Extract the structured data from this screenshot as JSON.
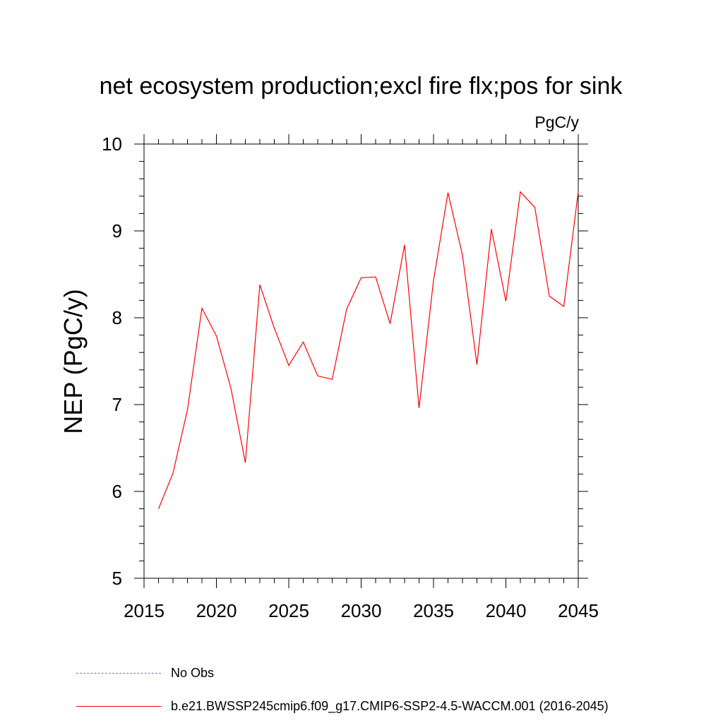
{
  "chart_data": {
    "type": "line",
    "title": "net ecosystem production;excl fire flx;pos for sink",
    "units": "PgC/y",
    "ylabel": "NEP  (PgC/y)",
    "xlabel": "",
    "xlim": [
      2015,
      2045
    ],
    "ylim": [
      5,
      10
    ],
    "xticks": [
      2015,
      2020,
      2025,
      2030,
      2035,
      2040,
      2045
    ],
    "yticks": [
      5,
      6,
      7,
      8,
      9,
      10
    ],
    "grid": false,
    "legend_position": "bottom",
    "series": [
      {
        "name": "b.e21.BWSSP245cmip6.f09_g17.CMIP6-SSP2-4.5-WACCM.001 (2016-2045)",
        "color": "#ff0000",
        "style": "solid",
        "x": [
          2016,
          2017,
          2018,
          2019,
          2020,
          2021,
          2022,
          2023,
          2024,
          2025,
          2026,
          2027,
          2028,
          2029,
          2030,
          2031,
          2032,
          2033,
          2034,
          2035,
          2036,
          2037,
          2038,
          2039,
          2040,
          2041,
          2042,
          2043,
          2044,
          2045
        ],
        "y": [
          5.8,
          6.21,
          6.94,
          8.11,
          7.79,
          7.19,
          6.33,
          8.38,
          7.88,
          7.45,
          7.72,
          7.33,
          7.29,
          8.1,
          8.46,
          8.47,
          7.93,
          8.84,
          6.96,
          8.43,
          9.44,
          8.72,
          7.46,
          9.02,
          8.19,
          9.45,
          9.27,
          8.25,
          8.13,
          9.45
        ]
      }
    ],
    "legend": [
      {
        "label": "No Obs",
        "color": "#7a6fc4",
        "style": "dashed"
      },
      {
        "label": "b.e21.BWSSP245cmip6.f09_g17.CMIP6-SSP2-4.5-WACCM.001 (2016-2045)",
        "color": "#ff0000",
        "style": "solid"
      }
    ]
  }
}
